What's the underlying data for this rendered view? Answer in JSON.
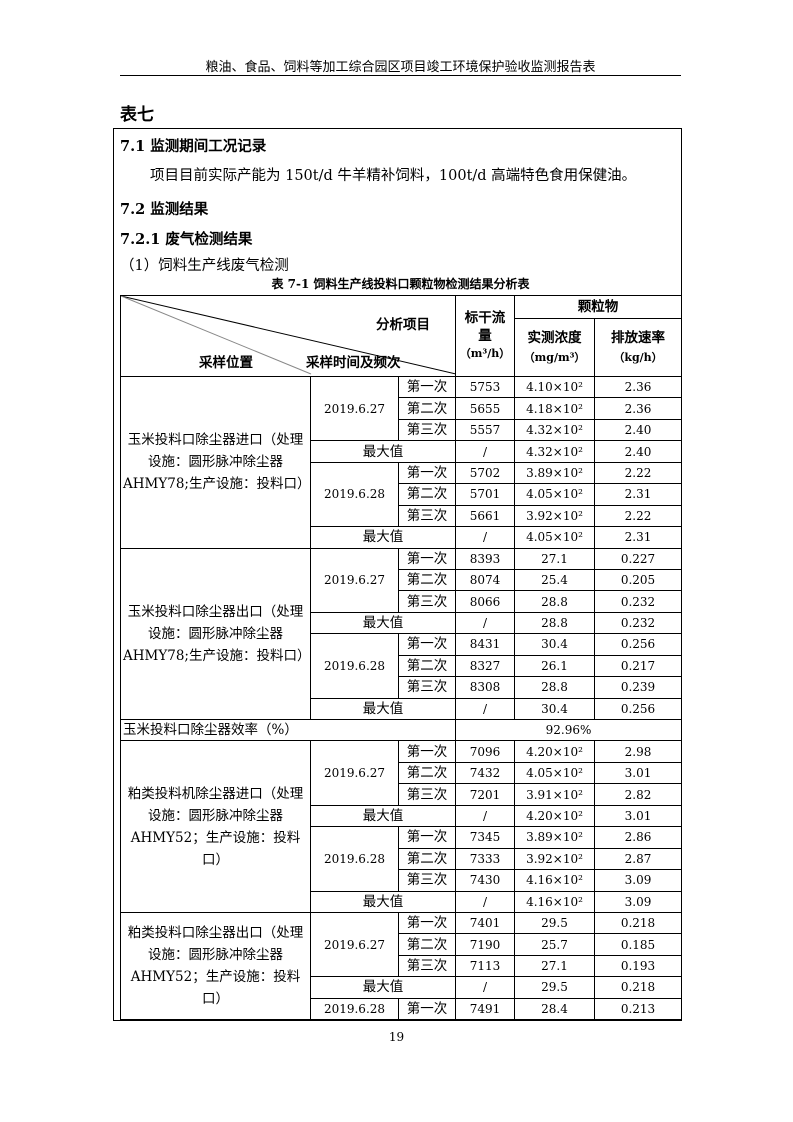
{
  "header": "粮油、食品、饲料等加工综合园区项目竣工环境保护验收监测报告表",
  "table_label": "表七",
  "s71": "7.1 监测期间工况记录",
  "s71_text": "项目目前实际产能为 150t/d 牛羊精补饲料，100t/d 高端特色食用保健油。",
  "s72": "7.2 监测结果",
  "s721": "7.2.1 废气检测结果",
  "s721_sub": "（1）饲料生产线废气检测",
  "caption": "表 7-1   饲料生产线投料口颗粒物检测结果分析表",
  "table": {
    "h_item": "分析项目",
    "h_loc": "采样位置",
    "h_time": "采样时间及频次",
    "h_flow1": "标干流",
    "h_flow2": "量",
    "h_flow3": "（m³/h）",
    "h_pm": "颗粒物",
    "h_conc": "实测浓度",
    "h_conc_u": "（mg/m³）",
    "h_rate": "排放速率",
    "h_rate_u": "（kg/h）",
    "max_label": "最大值",
    "groups": [
      {
        "location": "玉米投料口除尘器进口（处理设施：圆形脉冲除尘器AHMY78;生产设施：投料口）",
        "days": [
          {
            "date": "2019.6.27",
            "rows": [
              [
                "第一次",
                "5753",
                "4.10×10²",
                "2.36"
              ],
              [
                "第二次",
                "5655",
                "4.18×10²",
                "2.36"
              ],
              [
                "第三次",
                "5557",
                "4.32×10²",
                "2.40"
              ]
            ],
            "max": [
              "/",
              "4.32×10²",
              "2.40"
            ]
          },
          {
            "date": "2019.6.28",
            "rows": [
              [
                "第一次",
                "5702",
                "3.89×10²",
                "2.22"
              ],
              [
                "第二次",
                "5701",
                "4.05×10²",
                "2.31"
              ],
              [
                "第三次",
                "5661",
                "3.92×10²",
                "2.22"
              ]
            ],
            "max": [
              "/",
              "4.05×10²",
              "2.31"
            ]
          }
        ]
      },
      {
        "location": "玉米投料口除尘器出口（处理设施：圆形脉冲除尘器AHMY78;生产设施：投料口）",
        "days": [
          {
            "date": "2019.6.27",
            "rows": [
              [
                "第一次",
                "8393",
                "27.1",
                "0.227"
              ],
              [
                "第二次",
                "8074",
                "25.4",
                "0.205"
              ],
              [
                "第三次",
                "8066",
                "28.8",
                "0.232"
              ]
            ],
            "max": [
              "/",
              "28.8",
              "0.232"
            ]
          },
          {
            "date": "2019.6.28",
            "rows": [
              [
                "第一次",
                "8431",
                "30.4",
                "0.256"
              ],
              [
                "第二次",
                "8327",
                "26.1",
                "0.217"
              ],
              [
                "第三次",
                "8308",
                "28.8",
                "0.239"
              ]
            ],
            "max": [
              "/",
              "30.4",
              "0.256"
            ]
          }
        ],
        "efficiency": {
          "label": "玉米投料口除尘器效率（%）",
          "value": "92.96%"
        }
      },
      {
        "location": "粕类投料机除尘器进口（处理设施：圆形脉冲除尘器AHMY52；生产设施：投料口）",
        "days": [
          {
            "date": "2019.6.27",
            "rows": [
              [
                "第一次",
                "7096",
                "4.20×10²",
                "2.98"
              ],
              [
                "第二次",
                "7432",
                "4.05×10²",
                "3.01"
              ],
              [
                "第三次",
                "7201",
                "3.91×10²",
                "2.82"
              ]
            ],
            "max": [
              "/",
              "4.20×10²",
              "3.01"
            ]
          },
          {
            "date": "2019.6.28",
            "rows": [
              [
                "第一次",
                "7345",
                "3.89×10²",
                "2.86"
              ],
              [
                "第二次",
                "7333",
                "3.92×10²",
                "2.87"
              ],
              [
                "第三次",
                "7430",
                "4.16×10²",
                "3.09"
              ]
            ],
            "max": [
              "/",
              "4.16×10²",
              "3.09"
            ]
          }
        ]
      },
      {
        "location": "粕类投料口除尘器出口（处理设施：圆形脉冲除尘器AHMY52；生产设施：投料口）",
        "days": [
          {
            "date": "2019.6.27",
            "rows": [
              [
                "第一次",
                "7401",
                "29.5",
                "0.218"
              ],
              [
                "第二次",
                "7190",
                "25.7",
                "0.185"
              ],
              [
                "第三次",
                "7113",
                "27.1",
                "0.193"
              ]
            ],
            "max": [
              "/",
              "29.5",
              "0.218"
            ]
          },
          {
            "date": "2019.6.28",
            "rows": [
              [
                "第一次",
                "7491",
                "28.4",
                "0.213"
              ]
            ]
          }
        ]
      }
    ]
  },
  "page_number": "19"
}
